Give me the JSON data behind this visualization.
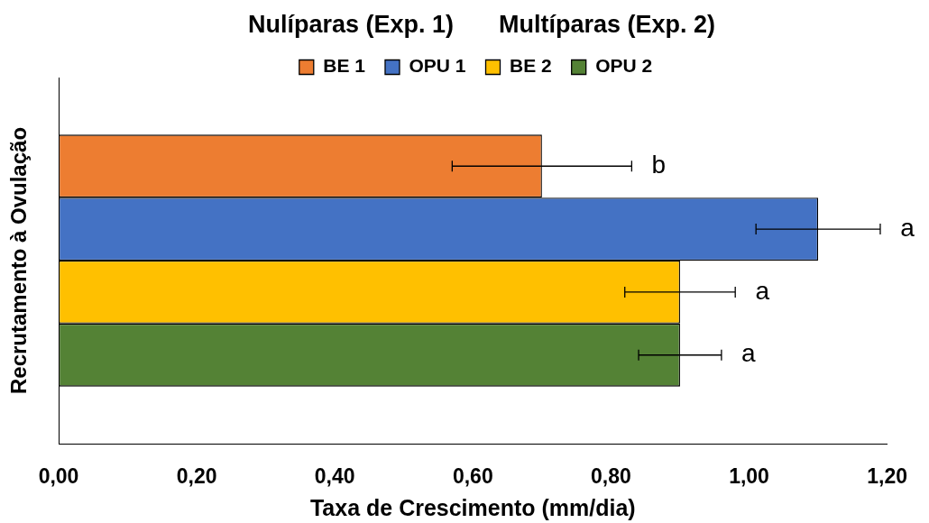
{
  "chart_data": {
    "type": "bar",
    "orientation": "horizontal",
    "title": "Nulíparas (Exp. 1)",
    "subtitle": "Multíparas (Exp. 2)",
    "xlabel": "Taxa de Crescimento (mm/dia)",
    "ylabel": "Recrutamento à Ovulação",
    "categories": [
      null
    ],
    "series": [
      {
        "name": "BE 1",
        "color": "#ed7d31",
        "values": [
          0.7
        ],
        "errors": [
          0.13
        ]
      },
      {
        "name": "OPU 1",
        "color": "#4472c4",
        "values": [
          1.1
        ],
        "errors": [
          0.09
        ]
      },
      {
        "name": "BE 2",
        "color": "#ffc000",
        "values": [
          0.9
        ],
        "errors": [
          0.08
        ]
      },
      {
        "name": "OPU 2",
        "color": "#548235",
        "values": [
          0.9
        ],
        "errors": [
          0.06
        ]
      }
    ],
    "xlim": [
      0,
      1.2
    ],
    "xticks": [
      {
        "value": 0,
        "label": "0,00"
      },
      {
        "value": 0.2,
        "label": "0,20"
      },
      {
        "value": 0.4,
        "label": "0,40"
      },
      {
        "value": 0.6,
        "label": "0,60"
      },
      {
        "value": 0.8,
        "label": "0,80"
      },
      {
        "value": 1.0,
        "label": "1,00"
      },
      {
        "value": 1.2,
        "label": "1,20"
      }
    ],
    "grid": false,
    "legend": "top",
    "tick_labels": "x",
    "annotations": [
      {
        "text": "b",
        "x": 0.83
      },
      {
        "text": "a",
        "x": 1.19
      },
      {
        "text": "a",
        "x": 0.98
      },
      {
        "text": "a",
        "x": 0.96
      }
    ]
  }
}
